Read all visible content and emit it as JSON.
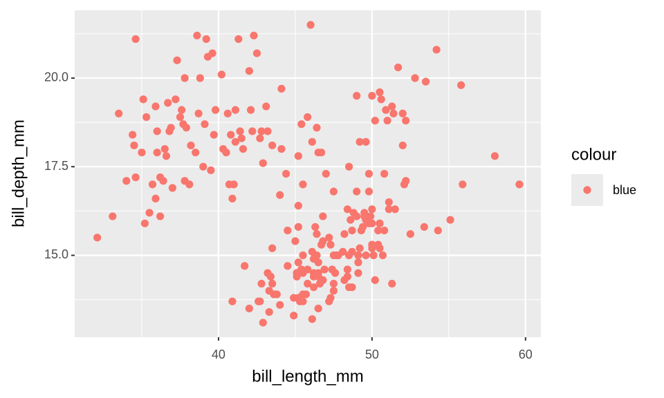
{
  "chart_data": {
    "type": "scatter",
    "x_label": "bill_length_mm",
    "y_label": "bill_depth_mm",
    "legend_title": "colour",
    "legend_position": "right",
    "xlim": [
      30.63,
      61.0
    ],
    "ylim": [
      12.69,
      21.91
    ],
    "xticks": [
      40,
      50,
      60
    ],
    "yticks": [
      {
        "value": 15,
        "label": "15.0"
      },
      17.5,
      {
        "value": 20,
        "label": "20.0"
      }
    ],
    "x_minor_breaks": [
      35,
      45,
      55
    ],
    "y_minor_breaks": [
      13.75,
      16.25,
      18.75,
      21.25
    ],
    "grid": true,
    "x": [
      32.1,
      33.1,
      33.5,
      34.0,
      34.4,
      34.5,
      34.6,
      34.6,
      35.0,
      35.1,
      35.2,
      35.3,
      35.5,
      35.7,
      35.9,
      35.9,
      36.0,
      36.0,
      36.2,
      36.2,
      36.4,
      36.5,
      36.6,
      36.7,
      36.8,
      36.9,
      37.0,
      37.2,
      37.3,
      37.5,
      37.6,
      37.7,
      37.8,
      37.8,
      37.9,
      38.1,
      38.2,
      38.5,
      38.6,
      38.7,
      38.8,
      39.0,
      39.1,
      39.2,
      39.3,
      39.5,
      39.6,
      39.7,
      39.8,
      40.2,
      40.3,
      40.5,
      40.6,
      40.8,
      40.9,
      41.0,
      41.1,
      41.1,
      41.3,
      41.4,
      41.5,
      41.6,
      42.0,
      42.1,
      42.2,
      42.3,
      42.5,
      42.7,
      42.8,
      43.1,
      43.2,
      43.5,
      44.1,
      44.1,
      45.8,
      46.0,
      46.5,
      45.5,
      46.1,
      46.4,
      45.2,
      47.5,
      49.0,
      49.2,
      50.0,
      50.5,
      51.3,
      52.0,
      52.8,
      53.5,
      54.2,
      55.8,
      50.9,
      51.7,
      49.6,
      50.6,
      51.4,
      50.2,
      52.0,
      49.8,
      51.0,
      52.2,
      46.7,
      47.0,
      48.5,
      49.0,
      45.4,
      42.9,
      44.0,
      40.7,
      46.1,
      50.0,
      48.7,
      50.0,
      47.6,
      46.5,
      45.4,
      46.7,
      43.3,
      46.8,
      40.9,
      49.0,
      45.5,
      48.4,
      45.8,
      49.3,
      42.0,
      49.2,
      46.2,
      48.7,
      50.2,
      45.1,
      46.5,
      46.3,
      42.9,
      46.1,
      47.8,
      48.2,
      50.0,
      47.3,
      42.8,
      45.1,
      59.6,
      49.1,
      48.4,
      42.6,
      44.4,
      44.0,
      48.7,
      42.7,
      49.6,
      45.3,
      49.6,
      50.5,
      43.6,
      45.5,
      50.5,
      44.9,
      45.2,
      46.6,
      48.5,
      45.1,
      50.1,
      46.5,
      45.0,
      43.8,
      45.5,
      43.2,
      50.4,
      45.3,
      46.2,
      45.7,
      54.3,
      45.8,
      49.8,
      46.2,
      49.5,
      43.5,
      50.7,
      47.7,
      46.4,
      48.2,
      46.5,
      46.4,
      48.6,
      47.5,
      51.1,
      45.2,
      45.2,
      49.1,
      52.5,
      47.4,
      50.0,
      44.9,
      50.8,
      43.4,
      51.3,
      47.5,
      52.1,
      47.5,
      52.2,
      45.5,
      49.5,
      44.5,
      50.8,
      49.4,
      46.9,
      48.4,
      51.1,
      48.5,
      55.9,
      47.2,
      49.1,
      47.3,
      46.8,
      41.7,
      53.4,
      43.3,
      48.1,
      50.5,
      49.8,
      43.5,
      51.5,
      46.2,
      55.1,
      44.5,
      48.8,
      47.2,
      46.8,
      50.4,
      45.2,
      49.9,
      58.0
    ],
    "series": [
      {
        "name": "blue",
        "color": "#F8766D",
        "values": [
          15.5,
          16.1,
          19.0,
          17.1,
          18.4,
          18.1,
          21.1,
          17.2,
          17.9,
          19.4,
          15.9,
          18.9,
          16.2,
          17.0,
          19.2,
          16.6,
          17.9,
          18.5,
          16.1,
          17.2,
          17.1,
          18.0,
          17.8,
          19.3,
          18.5,
          18.6,
          16.9,
          19.4,
          20.5,
          18.9,
          19.1,
          18.7,
          20.0,
          17.1,
          18.6,
          17.0,
          18.1,
          17.9,
          21.2,
          19.0,
          20.0,
          17.5,
          18.7,
          21.1,
          20.6,
          17.4,
          20.7,
          18.4,
          19.1,
          20.1,
          18.0,
          17.9,
          19.0,
          18.4,
          16.6,
          17.0,
          19.1,
          18.2,
          21.1,
          18.5,
          18.3,
          18.0,
          20.2,
          19.1,
          18.5,
          21.2,
          20.7,
          18.3,
          18.5,
          19.2,
          18.5,
          18.1,
          19.7,
          18.0,
          18.9,
          21.5,
          17.9,
          17.0,
          18.2,
          18.6,
          17.8,
          16.8,
          19.5,
          18.2,
          19.5,
          19.6,
          19.2,
          19.0,
          20.0,
          19.9,
          20.8,
          19.8,
          19.1,
          20.3,
          18.2,
          19.4,
          19.0,
          18.8,
          18.1,
          17.3,
          18.8,
          18.8,
          17.9,
          17.3,
          17.5,
          16.8,
          18.7,
          17.6,
          16.7,
          17.0,
          13.2,
          16.3,
          14.1,
          15.2,
          14.5,
          13.5,
          14.6,
          15.3,
          13.4,
          15.4,
          13.7,
          16.1,
          13.7,
          14.6,
          14.6,
          15.7,
          13.5,
          15.2,
          14.5,
          15.1,
          14.3,
          14.5,
          14.5,
          15.8,
          13.1,
          15.1,
          15.0,
          14.3,
          15.3,
          15.3,
          14.2,
          14.5,
          17.0,
          14.8,
          16.3,
          13.7,
          17.3,
          13.6,
          15.7,
          13.7,
          16.0,
          13.7,
          15.0,
          15.9,
          13.9,
          13.9,
          15.9,
          13.3,
          15.8,
          14.2,
          14.1,
          14.4,
          15.0,
          14.4,
          15.4,
          13.9,
          15.0,
          14.5,
          15.3,
          13.8,
          14.9,
          13.9,
          15.7,
          14.2,
          16.8,
          14.4,
          16.2,
          14.2,
          15.0,
          15.0,
          15.6,
          15.6,
          14.8,
          15.0,
          16.0,
          14.2,
          16.3,
          13.8,
          16.4,
          14.5,
          15.6,
          14.6,
          15.9,
          13.8,
          17.3,
          14.4,
          14.2,
          14.0,
          17.0,
          15.0,
          17.1,
          14.5,
          16.1,
          14.7,
          15.7,
          15.8,
          14.6,
          14.4,
          16.5,
          15.0,
          17.0,
          15.5,
          15.0,
          13.8,
          16.1,
          14.7,
          15.8,
          14.0,
          15.1,
          15.2,
          15.9,
          15.2,
          16.3,
          14.1,
          16.0,
          15.7,
          16.2,
          13.7,
          14.3,
          15.7,
          14.8,
          16.1,
          17.8
        ]
      }
    ]
  }
}
